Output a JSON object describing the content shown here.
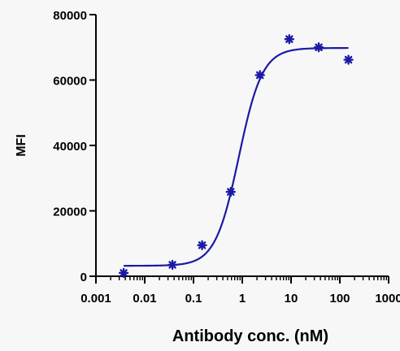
{
  "chart_data": {
    "type": "scatter",
    "title": "",
    "xlabel": "Antibody conc. (nM)",
    "ylabel": "MFI",
    "x_scale": "log",
    "xlim": [
      0.001,
      1000
    ],
    "ylim": [
      0,
      80000
    ],
    "x_tick_labels": [
      "0.001",
      "0.01",
      "0.1",
      "1",
      "10",
      "100",
      "1000"
    ],
    "x_tick_values": [
      0.001,
      0.01,
      0.1,
      1,
      10,
      100,
      1000
    ],
    "y_tick_labels": [
      "0",
      "20000",
      "40000",
      "60000",
      "80000"
    ],
    "y_tick_values": [
      0,
      20000,
      40000,
      60000,
      80000
    ],
    "grid": false,
    "legend": "none",
    "series": [
      {
        "x": [
          0.0037,
          0.037,
          0.15,
          0.58,
          2.3,
          9.2,
          37,
          150
        ],
        "y": [
          1000,
          3500,
          9500,
          25800,
          61500,
          72500,
          70000,
          66200
        ],
        "marker": "asterisk",
        "color": "#1a1aa6"
      }
    ],
    "fit": {
      "model": "four-parameter logistic",
      "bottom": 3200,
      "top": 69800,
      "ec50": 0.85,
      "hill": 1.8,
      "color": "#1a1aa6"
    }
  }
}
